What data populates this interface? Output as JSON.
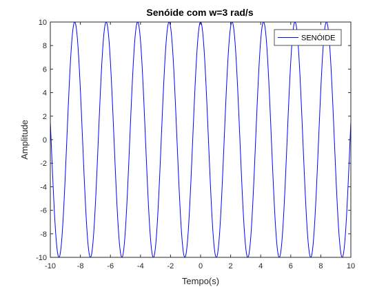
{
  "chart_data": {
    "type": "line",
    "title": "Senóide com w=3 rad/s",
    "xlabel": "Tempo(s)",
    "ylabel": "Amplitude",
    "xlim": [
      -10,
      10
    ],
    "ylim": [
      -10,
      10
    ],
    "x_ticks": [
      "-10",
      "-8",
      "-6",
      "-4",
      "-2",
      "0",
      "2",
      "4",
      "6",
      "8",
      "10"
    ],
    "y_ticks": [
      "-10",
      "-8",
      "-6",
      "-4",
      "-2",
      "0",
      "2",
      "4",
      "6",
      "8",
      "10"
    ],
    "grid": false,
    "legend_position": "top-right",
    "series": [
      {
        "name": "SENÓIDE",
        "color": "#0000ff",
        "function": "10*cos(3*t)",
        "amplitude": 10,
        "angular_frequency": 3,
        "t_range": [
          -10,
          10
        ]
      }
    ]
  }
}
